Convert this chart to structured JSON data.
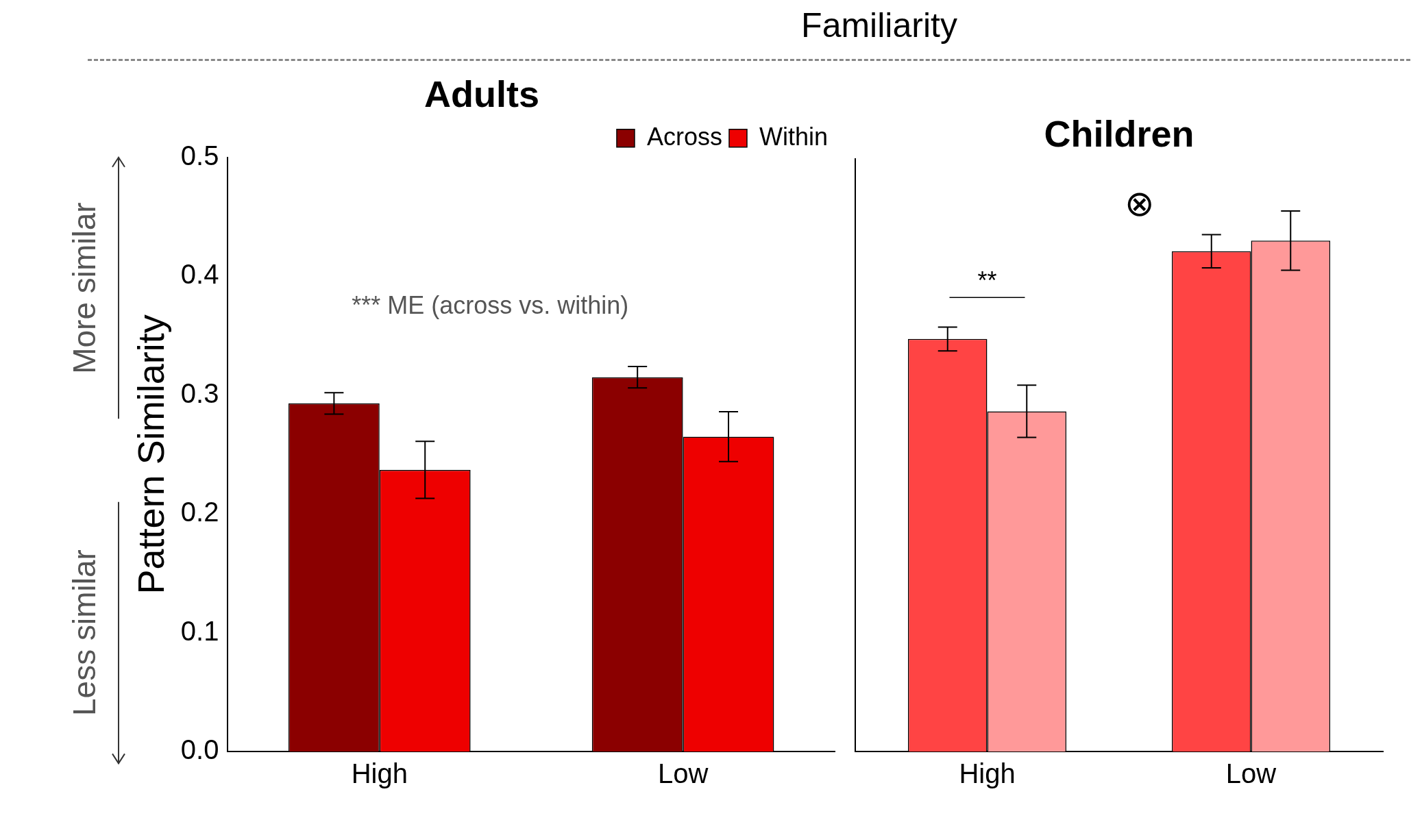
{
  "chart_data": [
    {
      "type": "bar",
      "title": "Adults",
      "subtitle": "Familiarity",
      "ylabel": "Pattern Similarity",
      "categories": [
        "High",
        "Low"
      ],
      "series": [
        {
          "name": "Across",
          "color": "#8b0000",
          "values": [
            0.293,
            0.315
          ],
          "errors": [
            0.009,
            0.009
          ]
        },
        {
          "name": "Within",
          "color": "#ee0000",
          "values": [
            0.237,
            0.265
          ],
          "errors": [
            0.024,
            0.021
          ]
        }
      ],
      "ylim": [
        0,
        0.5
      ],
      "yticks": [
        {
          "value": 0,
          "label": "0.0"
        },
        0.1,
        0.2,
        0.3,
        0.4,
        0.5
      ],
      "legend": "top right",
      "grid": false,
      "annotations": [
        "*** ME (across vs. within)",
        "More similar",
        "Less similar"
      ]
    },
    {
      "type": "bar",
      "title": "Children",
      "categories": [
        "High",
        "Low"
      ],
      "series": [
        {
          "color": "#ff4444",
          "values": [
            0.348,
            0.422
          ],
          "errors": [
            0.01,
            0.014
          ]
        },
        {
          "color": "#ff9999",
          "values": [
            0.287,
            0.431
          ],
          "errors": [
            0.022,
            0.025
          ]
        }
      ],
      "ylim": [
        0,
        0.5
      ],
      "tick_labels": "x",
      "grid": false,
      "annotations": [
        "**",
        "⊗"
      ]
    }
  ]
}
